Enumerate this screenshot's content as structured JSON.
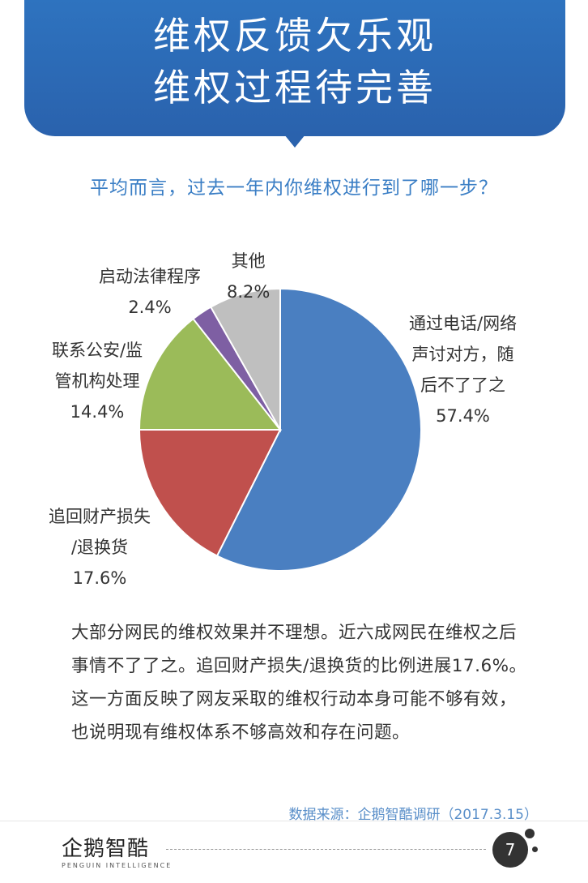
{
  "header": {
    "title_line1": "维权反馈欠乐观",
    "title_line2": "维权过程待完善"
  },
  "question": "平均而言，过去一年内你维权进行到了哪一步？",
  "chart_data": {
    "type": "pie",
    "slices": [
      {
        "name": "通过电话/网络声讨对方，随后不了了之",
        "label_lines": [
          "通过电话/网络",
          "声讨对方，随",
          "后不了了之"
        ],
        "pct_label": "57.4%",
        "value": 57.4,
        "color": "#4a7fc1"
      },
      {
        "name": "追回财产损失/退换货",
        "label_lines": [
          "追回财产损失",
          "/退换货"
        ],
        "pct_label": "17.6%",
        "value": 17.6,
        "color": "#c0504d"
      },
      {
        "name": "联系公安/监管机构处理",
        "label_lines": [
          "联系公安/监",
          "管机构处理"
        ],
        "pct_label": "14.4%",
        "value": 14.4,
        "color": "#9bbb59"
      },
      {
        "name": "启动法律程序",
        "label_lines": [
          "启动法律程序"
        ],
        "pct_label": "2.4%",
        "value": 2.4,
        "color": "#7e5fa3"
      },
      {
        "name": "其他",
        "label_lines": [
          "其他"
        ],
        "pct_label": "8.2%",
        "value": 8.2,
        "color": "#bfbfbf"
      }
    ]
  },
  "body_text": "大部分网民的维权效果并不理想。近六成网民在维权之后事情不了了之。追回财产损失/退换货的比例进展17.6%。这一方面反映了网友采取的维权行动本身可能不够有效，也说明现有维权体系不够高效和存在问题。",
  "source": "数据来源：企鹅智酷调研（2017.3.15）",
  "footer": {
    "logo_text": "企鹅智酷",
    "logo_sub": "PENGUIN INTELLIGENCE",
    "page_number": "7"
  }
}
